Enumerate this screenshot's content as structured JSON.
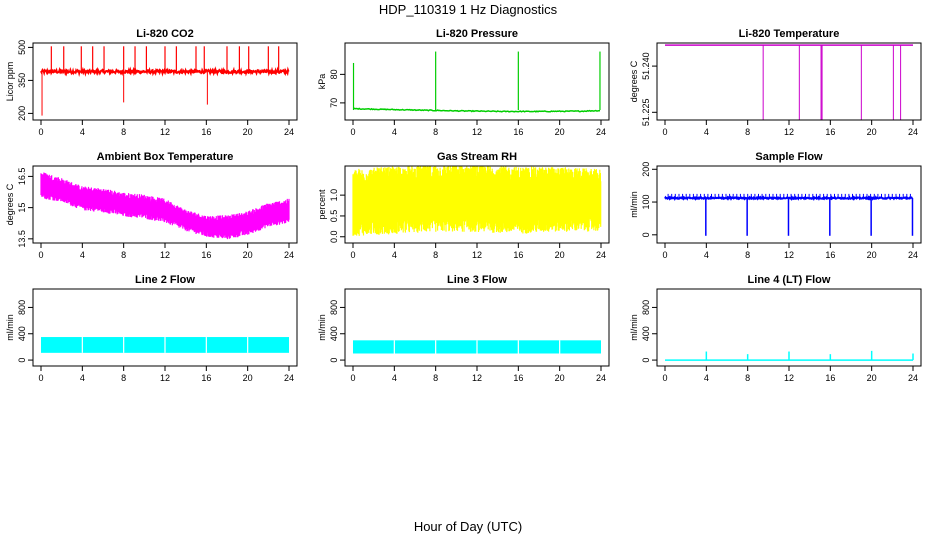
{
  "figure": {
    "title": "HDP_110319  1 Hz Diagnostics",
    "xlabel": "Hour of Day (UTC)"
  },
  "colors": {
    "red": "#ff0000",
    "green": "#00cd00",
    "magenta": "#ff00ff",
    "purple": "#cc00cc",
    "yellow": "#ffff00",
    "blue": "#0000ff",
    "cyan": "#00ffff"
  },
  "chart_data": [
    {
      "type": "line",
      "title": "Li-820 CO2",
      "ylabel": "Licor ppm",
      "color": "red",
      "xlim": [
        0,
        24
      ],
      "xticks": [
        0,
        4,
        8,
        12,
        16,
        20,
        24
      ],
      "ylim": [
        170,
        520
      ],
      "yticks": [
        200,
        350,
        500
      ],
      "baseline": 390,
      "band": [
        370,
        400
      ],
      "spikes_x": [
        1.0,
        2.2,
        3.9,
        5.0,
        6.1,
        8.0,
        9.1,
        10.2,
        12.0,
        13.1,
        15.0,
        15.8,
        18.0,
        19.2,
        20.1,
        22.0,
        23.0
      ],
      "spike_top": 505,
      "dips": [
        {
          "x": 0.1,
          "y": 190
        },
        {
          "x": 8.0,
          "y": 250
        },
        {
          "x": 16.1,
          "y": 240
        }
      ]
    },
    {
      "type": "line",
      "title": "Li-820 Pressure",
      "ylabel": "kPa",
      "color": "green",
      "xlim": [
        0,
        24
      ],
      "xticks": [
        0,
        4,
        8,
        12,
        16,
        20,
        24
      ],
      "ylim": [
        64,
        91
      ],
      "yticks": [
        70,
        80
      ],
      "series_x": [
        0,
        2,
        6,
        10,
        14,
        18,
        22,
        24
      ],
      "series_y": [
        68.0,
        67.8,
        67.5,
        67.2,
        67.0,
        67.0,
        67.1,
        67.3
      ],
      "spikes_x": [
        0.05,
        8.0,
        16.0,
        23.9
      ],
      "spike_tops": [
        84,
        88,
        88,
        88
      ]
    },
    {
      "type": "line",
      "title": "Li-820 Temperature",
      "ylabel": "degrees C",
      "color": "purple",
      "xlim": [
        0,
        24
      ],
      "xticks": [
        0,
        4,
        8,
        12,
        16,
        20,
        24
      ],
      "ylim": [
        51.2225,
        51.2475
      ],
      "yticks": [
        51.225,
        51.24
      ],
      "ytick_labels": [
        "51.225",
        "51.240"
      ],
      "baseline": 51.2468,
      "dips_x": [
        9.5,
        13.0,
        15.1,
        15.2,
        19.0,
        22.1,
        22.8
      ]
    },
    {
      "type": "area",
      "title": "Ambient Box Temperature",
      "ylabel": "degrees C",
      "color": "magenta",
      "xlim": [
        0,
        24
      ],
      "xticks": [
        0,
        4,
        8,
        12,
        16,
        20,
        24
      ],
      "ylim": [
        13.3,
        17.0
      ],
      "yticks": [
        13.5,
        15.0,
        16.5
      ],
      "series_x": [
        0,
        2,
        4,
        6,
        8,
        10,
        12,
        14,
        16,
        18,
        20,
        22,
        24
      ],
      "series_low": [
        15.6,
        15.4,
        15.0,
        14.9,
        14.7,
        14.6,
        14.4,
        14.0,
        13.7,
        13.6,
        13.8,
        14.2,
        14.4
      ],
      "series_high": [
        16.6,
        16.3,
        15.9,
        15.8,
        15.6,
        15.5,
        15.3,
        14.8,
        14.5,
        14.5,
        14.7,
        15.1,
        15.3
      ]
    },
    {
      "type": "area",
      "title": "Gas Stream RH",
      "ylabel": "percent",
      "color": "yellow",
      "xlim": [
        0,
        24
      ],
      "xticks": [
        0,
        4,
        8,
        12,
        16,
        20,
        24
      ],
      "ylim": [
        -0.15,
        1.7
      ],
      "yticks": [
        0.0,
        0.5,
        1.0
      ],
      "ytick_labels": [
        "0.0",
        "0.5",
        "1.0"
      ],
      "series_x": [
        0,
        4,
        8,
        12,
        16,
        20,
        24
      ],
      "series_low": [
        0.2,
        0.25,
        0.3,
        0.3,
        0.25,
        0.3,
        0.3
      ],
      "series_high": [
        1.45,
        1.5,
        1.55,
        1.55,
        1.5,
        1.5,
        1.45
      ]
    },
    {
      "type": "line",
      "title": "Sample Flow",
      "ylabel": "ml/min",
      "color": "blue",
      "xlim": [
        0,
        24
      ],
      "xticks": [
        0,
        4,
        8,
        12,
        16,
        20,
        24
      ],
      "ylim": [
        -25,
        210
      ],
      "yticks": [
        0,
        100,
        200
      ],
      "baseline": 112,
      "band_top": 125,
      "dips_x": [
        3.95,
        7.95,
        11.95,
        15.95,
        19.95,
        23.95
      ],
      "dip_low": -3
    },
    {
      "type": "area",
      "title": "Line 2 Flow",
      "ylabel": "ml/min",
      "color": "cyan",
      "xlim": [
        0,
        24
      ],
      "xticks": [
        0,
        4,
        8,
        12,
        16,
        20,
        24
      ],
      "ylim": [
        -90,
        1080
      ],
      "yticks": [
        0,
        400,
        800
      ],
      "band": [
        110,
        350
      ],
      "gaps_x": [
        4.0,
        8.0,
        12.0,
        16.0,
        20.0
      ]
    },
    {
      "type": "area",
      "title": "Line 3 Flow",
      "ylabel": "ml/min",
      "color": "cyan",
      "xlim": [
        0,
        24
      ],
      "xticks": [
        0,
        4,
        8,
        12,
        16,
        20,
        24
      ],
      "ylim": [
        -90,
        1080
      ],
      "yticks": [
        0,
        400,
        800
      ],
      "band": [
        100,
        300
      ],
      "gaps_x": [
        4.0,
        8.0,
        12.0,
        16.0,
        20.0
      ]
    },
    {
      "type": "line",
      "title": "Line 4 (LT) Flow",
      "ylabel": "ml/min",
      "color": "cyan",
      "xlim": [
        0,
        24
      ],
      "xticks": [
        0,
        4,
        8,
        12,
        16,
        20,
        24
      ],
      "ylim": [
        -90,
        1080
      ],
      "yticks": [
        0,
        400,
        800
      ],
      "baseline": 0,
      "spikes_x": [
        4.0,
        8.0,
        12.0,
        16.0,
        20.0,
        24.0
      ],
      "spike_tops": [
        130,
        90,
        130,
        90,
        140,
        100
      ]
    }
  ]
}
